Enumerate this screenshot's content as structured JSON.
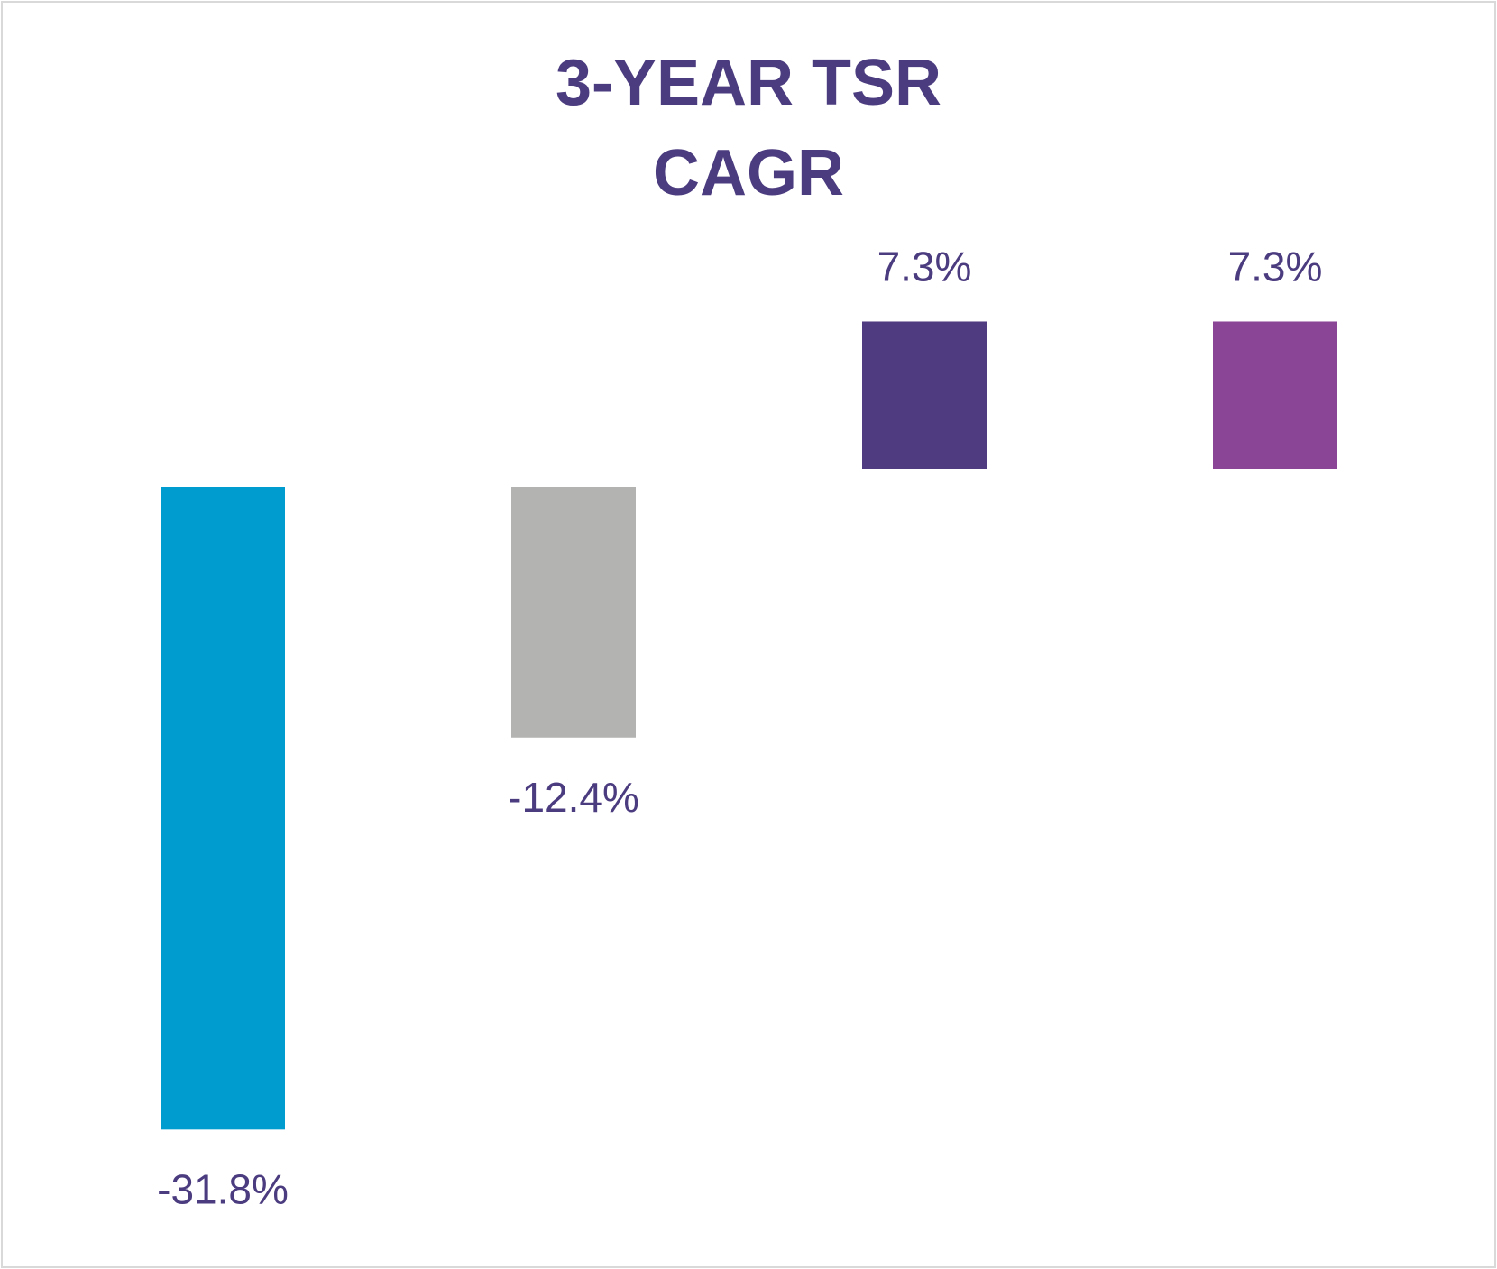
{
  "chart_data": {
    "type": "bar",
    "title_lines": [
      "3-YEAR TSR",
      "CAGR"
    ],
    "values": [
      -31.8,
      -12.4,
      7.3,
      7.3
    ],
    "data_labels": [
      "-31.8%",
      "-12.4%",
      "7.3%",
      "7.3%"
    ],
    "colors": [
      "#009cd0",
      "#b3b3b2",
      "#4f3b80",
      "#8b4596"
    ],
    "xlabel": "",
    "ylabel": "",
    "grid": false,
    "axes_visible": false
  }
}
